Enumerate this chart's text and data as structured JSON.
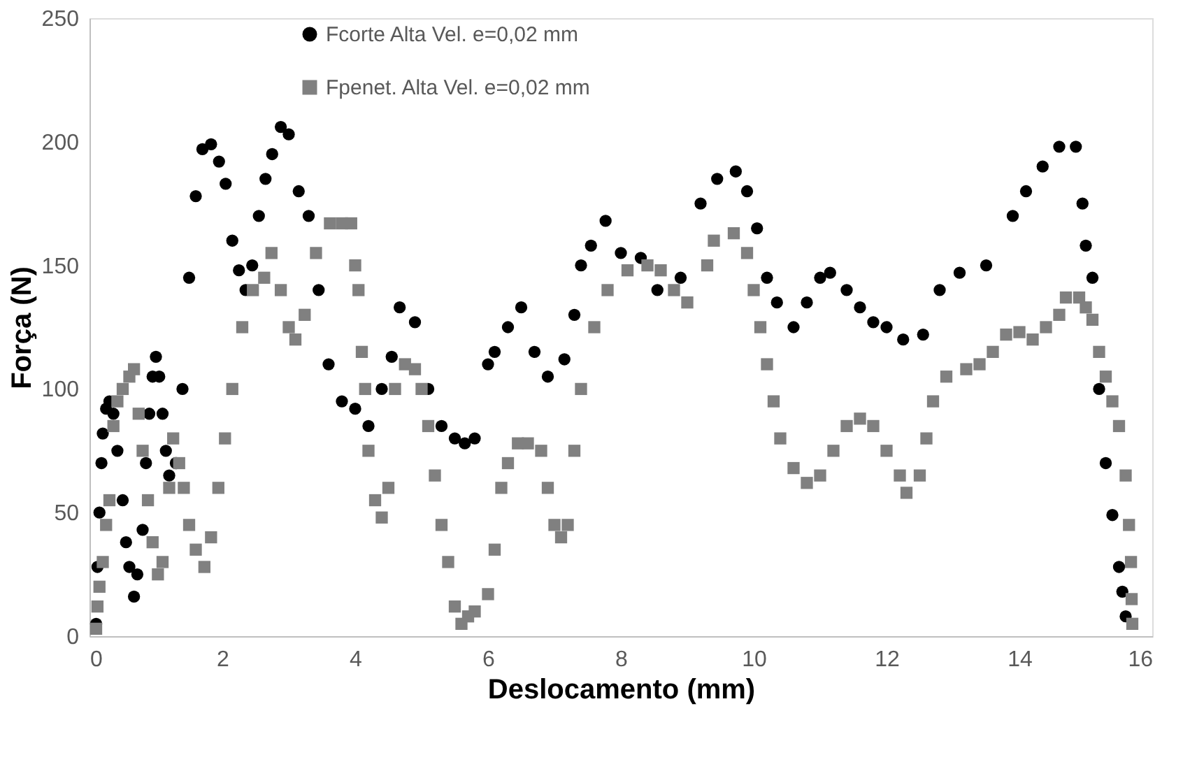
{
  "chart_data": {
    "type": "scatter",
    "xlabel": "Deslocamento (mm)",
    "ylabel": "Força (N)",
    "xlim": [
      0,
      16
    ],
    "xticks": [
      0,
      2,
      4,
      6,
      8,
      10,
      12,
      14,
      16
    ],
    "ylim": [
      0,
      250
    ],
    "yticks": [
      0,
      50,
      100,
      150,
      200,
      250
    ],
    "grid": false,
    "legend": "top left",
    "series": [
      {
        "name": "Fcorte Alta Vel. e=0,02 mm",
        "color": "#000000",
        "marker": "circle",
        "x": [
          0.1,
          0.12,
          0.15,
          0.18,
          0.2,
          0.25,
          0.3,
          0.36,
          0.42,
          0.5,
          0.55,
          0.6,
          0.67,
          0.72,
          0.8,
          0.85,
          0.9,
          0.95,
          1.0,
          1.05,
          1.1,
          1.15,
          1.2,
          1.3,
          1.4,
          1.5,
          1.6,
          1.7,
          1.83,
          1.95,
          2.05,
          2.15,
          2.25,
          2.35,
          2.45,
          2.55,
          2.65,
          2.75,
          2.88,
          3.0,
          3.15,
          3.3,
          3.45,
          3.6,
          3.8,
          4.0,
          4.2,
          4.4,
          4.55,
          4.67,
          4.9,
          5.1,
          5.3,
          5.5,
          5.65,
          5.8,
          6.0,
          6.1,
          6.3,
          6.5,
          6.7,
          6.9,
          7.15,
          7.3,
          7.4,
          7.55,
          7.77,
          8.0,
          8.3,
          8.55,
          8.9,
          9.2,
          9.45,
          9.73,
          9.9,
          10.05,
          10.2,
          10.35,
          10.6,
          10.8,
          11.0,
          11.15,
          11.4,
          11.6,
          11.8,
          12.0,
          12.25,
          12.55,
          12.8,
          13.1,
          13.5,
          13.9,
          14.1,
          14.35,
          14.6,
          14.85,
          14.95,
          15.0,
          15.1,
          15.2,
          15.3,
          15.4,
          15.5,
          15.55,
          15.6
        ],
        "values": [
          5,
          28,
          50,
          70,
          82,
          92,
          95,
          90,
          75,
          55,
          38,
          28,
          16,
          25,
          43,
          70,
          90,
          105,
          113,
          105,
          90,
          75,
          65,
          70,
          100,
          145,
          178,
          197,
          199,
          192,
          183,
          160,
          148,
          140,
          150,
          170,
          185,
          195,
          206,
          203,
          180,
          170,
          140,
          110,
          95,
          92,
          85,
          100,
          113,
          133,
          127,
          100,
          85,
          80,
          78,
          80,
          110,
          115,
          125,
          133,
          115,
          105,
          112,
          130,
          150,
          158,
          168,
          155,
          153,
          140,
          145,
          175,
          185,
          188,
          180,
          165,
          145,
          135,
          125,
          135,
          145,
          147,
          140,
          133,
          127,
          125,
          120,
          122,
          140,
          147,
          150,
          170,
          180,
          190,
          198,
          198,
          175,
          158,
          145,
          100,
          70,
          49,
          28,
          18,
          8
        ]
      },
      {
        "name": "Fpenet. Alta Vel. e=0,02 mm",
        "color": "#808080",
        "marker": "square",
        "x": [
          0.1,
          0.12,
          0.15,
          0.2,
          0.25,
          0.3,
          0.36,
          0.42,
          0.5,
          0.6,
          0.67,
          0.74,
          0.8,
          0.88,
          0.95,
          1.03,
          1.1,
          1.2,
          1.26,
          1.35,
          1.42,
          1.5,
          1.6,
          1.73,
          1.83,
          1.94,
          2.04,
          2.15,
          2.3,
          2.46,
          2.63,
          2.74,
          2.88,
          3.0,
          3.1,
          3.24,
          3.41,
          3.62,
          3.8,
          3.94,
          4.0,
          4.05,
          4.1,
          4.15,
          4.2,
          4.3,
          4.4,
          4.5,
          4.6,
          4.75,
          4.9,
          5.0,
          5.1,
          5.2,
          5.3,
          5.4,
          5.5,
          5.6,
          5.7,
          5.8,
          6.0,
          6.1,
          6.2,
          6.3,
          6.45,
          6.6,
          6.8,
          6.9,
          7.0,
          7.1,
          7.2,
          7.3,
          7.4,
          7.6,
          7.8,
          8.1,
          8.4,
          8.6,
          8.8,
          9.0,
          9.3,
          9.4,
          9.7,
          9.9,
          10.0,
          10.1,
          10.2,
          10.3,
          10.4,
          10.6,
          10.8,
          11.0,
          11.2,
          11.4,
          11.6,
          11.8,
          12.0,
          12.2,
          12.3,
          12.5,
          12.6,
          12.7,
          12.9,
          13.2,
          13.4,
          13.6,
          13.8,
          14.0,
          14.2,
          14.4,
          14.6,
          14.7,
          14.9,
          15.0,
          15.1,
          15.2,
          15.3,
          15.4,
          15.5,
          15.6,
          15.65,
          15.68,
          15.69,
          15.7
        ],
        "values": [
          3,
          12,
          20,
          30,
          45,
          55,
          85,
          95,
          100,
          105,
          108,
          90,
          75,
          55,
          38,
          25,
          30,
          60,
          80,
          70,
          60,
          45,
          35,
          28,
          40,
          60,
          80,
          100,
          125,
          140,
          145,
          155,
          140,
          125,
          120,
          130,
          155,
          167,
          167,
          167,
          150,
          140,
          115,
          100,
          75,
          55,
          48,
          60,
          100,
          110,
          108,
          100,
          85,
          65,
          45,
          30,
          12,
          5,
          8,
          10,
          17,
          35,
          60,
          70,
          78,
          78,
          75,
          60,
          45,
          40,
          45,
          75,
          100,
          125,
          140,
          148,
          150,
          148,
          140,
          135,
          150,
          160,
          163,
          155,
          140,
          125,
          110,
          95,
          80,
          68,
          62,
          65,
          75,
          85,
          88,
          85,
          75,
          65,
          58,
          65,
          80,
          95,
          105,
          108,
          110,
          115,
          122,
          123,
          120,
          125,
          130,
          137,
          137,
          133,
          128,
          115,
          105,
          95,
          85,
          65,
          45,
          30,
          15,
          5
        ]
      }
    ]
  }
}
